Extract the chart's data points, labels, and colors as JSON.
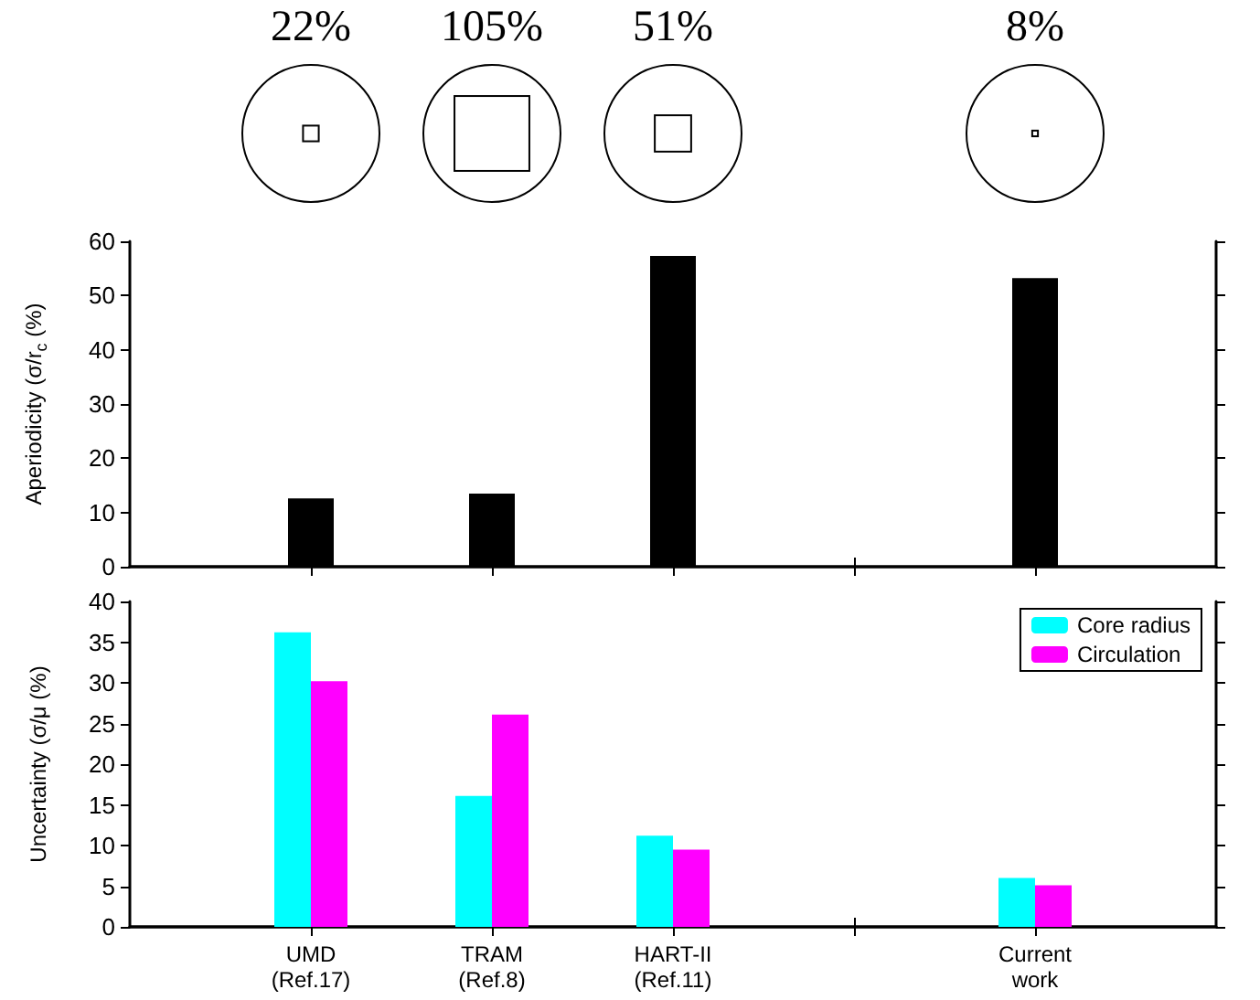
{
  "chart_data": [
    {
      "type": "bar",
      "categories": [
        null,
        "UMD\n(Ref.17)",
        "TRAM\n(Ref.8)",
        "HART-II\n(Ref.11)",
        null,
        "Current\nwork",
        null
      ],
      "values": [
        null,
        12.6,
        13.5,
        57.3,
        0,
        53.2,
        null
      ],
      "color": "#000000",
      "ylabel": "Aperiodicity (σ/r$_{c}$ (%)",
      "ylim": [
        0,
        60
      ],
      "yticks": [
        0,
        10,
        20,
        30,
        40,
        50,
        60
      ],
      "tick_labels": "y",
      "grid": false,
      "legend": false,
      "annotations": [
        "22%",
        "105%",
        "51%",
        "8%"
      ]
    },
    {
      "type": "bar",
      "categories": [
        null,
        "UMD\n(Ref.17)",
        "TRAM\n(Ref.8)",
        "HART-II\n(Ref.11)",
        null,
        "Current\nwork",
        null
      ],
      "series": [
        {
          "name": "Core radius",
          "color": "#00ffff",
          "values": [
            null,
            36.2,
            16.1,
            11.2,
            0,
            6.0,
            null
          ]
        },
        {
          "name": "Circulation",
          "color": "#ff00ff",
          "values": [
            null,
            30.2,
            26.1,
            9.5,
            0,
            5.1,
            null
          ]
        }
      ],
      "ylabel": "Uncertainty (σ/μ (%)",
      "ylim": [
        0,
        40
      ],
      "yticks": [
        0,
        5,
        10,
        15,
        20,
        25,
        30,
        35,
        40
      ],
      "grid": false,
      "legend": "top right"
    }
  ]
}
